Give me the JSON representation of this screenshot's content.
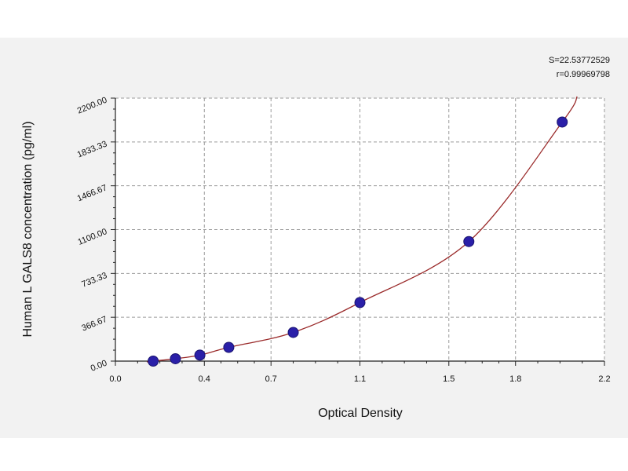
{
  "chart_data": {
    "type": "scatter",
    "xlabel": "Optical Density",
    "ylabel": "Human L GALS8 concentration (pg/ml)",
    "xlim": [
      0.0,
      2.2
    ],
    "ylim": [
      0,
      2200
    ],
    "x_ticks": [
      0.0,
      0.4,
      0.7,
      1.1,
      1.5,
      1.8,
      2.2
    ],
    "x_tick_labels": [
      "0.0",
      "0.4",
      "0.7",
      "1.1",
      "1.5",
      "1.8",
      "2.2"
    ],
    "y_ticks": [
      0,
      366.67,
      733.33,
      1100,
      1466.67,
      1833.33,
      2200
    ],
    "y_tick_labels": [
      "0.00",
      "366.67",
      "733.33",
      "1100.00",
      "1466.67",
      "1833.33",
      "2200.00"
    ],
    "grid": true,
    "stats": [
      "S=22.53772529",
      "r=0.99969798"
    ],
    "series": [
      {
        "points": [
          {
            "x": 0.17,
            "y": 0
          },
          {
            "x": 0.27,
            "y": 20
          },
          {
            "x": 0.38,
            "y": 50
          },
          {
            "x": 0.51,
            "y": 115
          },
          {
            "x": 0.8,
            "y": 240
          },
          {
            "x": 1.1,
            "y": 490
          },
          {
            "x": 1.59,
            "y": 1000
          },
          {
            "x": 2.01,
            "y": 2000
          }
        ],
        "fit_curve": true
      }
    ],
    "colors": {
      "marker": "#2a1fa8",
      "marker_edge": "#1a1470",
      "curve": "#9a2a2a",
      "grid": "#9a9a9a",
      "band": "#f2f2f2"
    }
  }
}
